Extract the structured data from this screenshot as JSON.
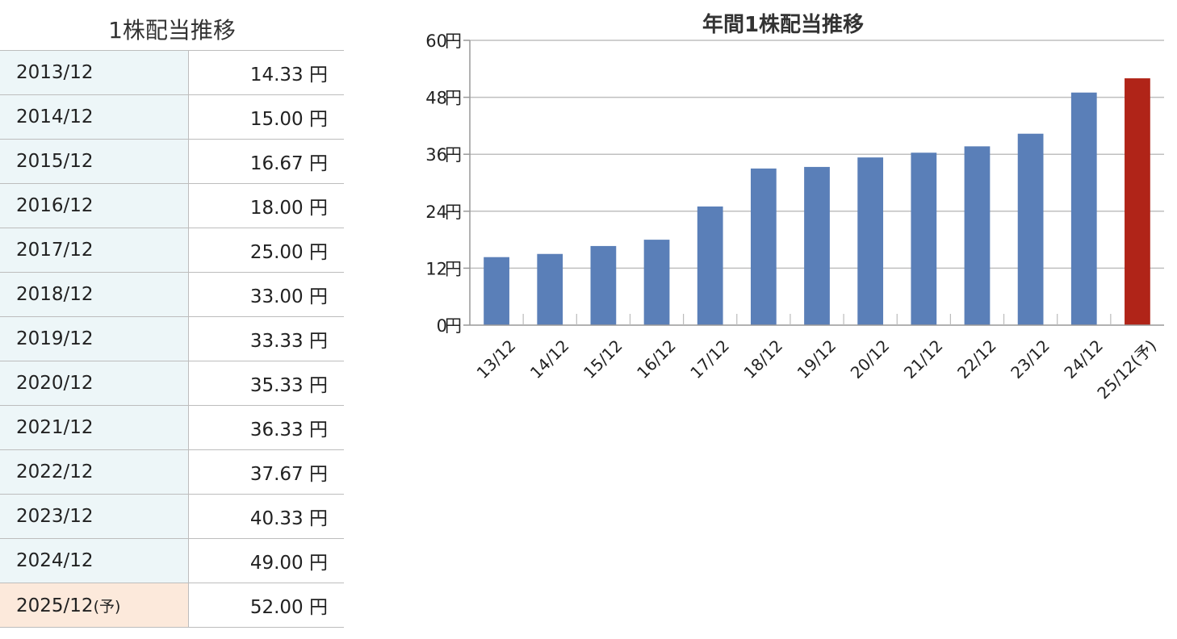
{
  "table": {
    "title": "1株配当推移",
    "unit": "円",
    "rows": [
      {
        "year": "2013/12",
        "suffix": "",
        "value": "14.33"
      },
      {
        "year": "2014/12",
        "suffix": "",
        "value": "15.00"
      },
      {
        "year": "2015/12",
        "suffix": "",
        "value": "16.67"
      },
      {
        "year": "2016/12",
        "suffix": "",
        "value": "18.00"
      },
      {
        "year": "2017/12",
        "suffix": "",
        "value": "25.00"
      },
      {
        "year": "2018/12",
        "suffix": "",
        "value": "33.00"
      },
      {
        "year": "2019/12",
        "suffix": "",
        "value": "33.33"
      },
      {
        "year": "2020/12",
        "suffix": "",
        "value": "35.33"
      },
      {
        "year": "2021/12",
        "suffix": "",
        "value": "36.33"
      },
      {
        "year": "2022/12",
        "suffix": "",
        "value": "37.67"
      },
      {
        "year": "2023/12",
        "suffix": "",
        "value": "40.33"
      },
      {
        "year": "2024/12",
        "suffix": "",
        "value": "49.00"
      },
      {
        "year": "2025/12",
        "suffix": "(予)",
        "value": "52.00",
        "forecast": true
      }
    ]
  },
  "colors": {
    "actual_bar": "#5a7fb8",
    "forecast_bar": "#b02418",
    "grid": "#bfbfbf"
  },
  "chart_data": {
    "type": "bar",
    "title": "年間1株配当推移",
    "xlabel": "",
    "ylabel": "",
    "categories": [
      "13/12",
      "14/12",
      "15/12",
      "16/12",
      "17/12",
      "18/12",
      "19/12",
      "20/12",
      "21/12",
      "22/12",
      "23/12",
      "24/12",
      "25/12(予)"
    ],
    "values": [
      14.33,
      15.0,
      16.67,
      18.0,
      25.0,
      33.0,
      33.33,
      35.33,
      36.33,
      37.67,
      40.33,
      49.0,
      52.0
    ],
    "forecast_flags": [
      false,
      false,
      false,
      false,
      false,
      false,
      false,
      false,
      false,
      false,
      false,
      false,
      true
    ],
    "ylim": [
      0,
      60
    ],
    "yticks": [
      0,
      12,
      24,
      36,
      48,
      60
    ],
    "ytick_unit": "円",
    "grid": true,
    "legend": "none"
  }
}
